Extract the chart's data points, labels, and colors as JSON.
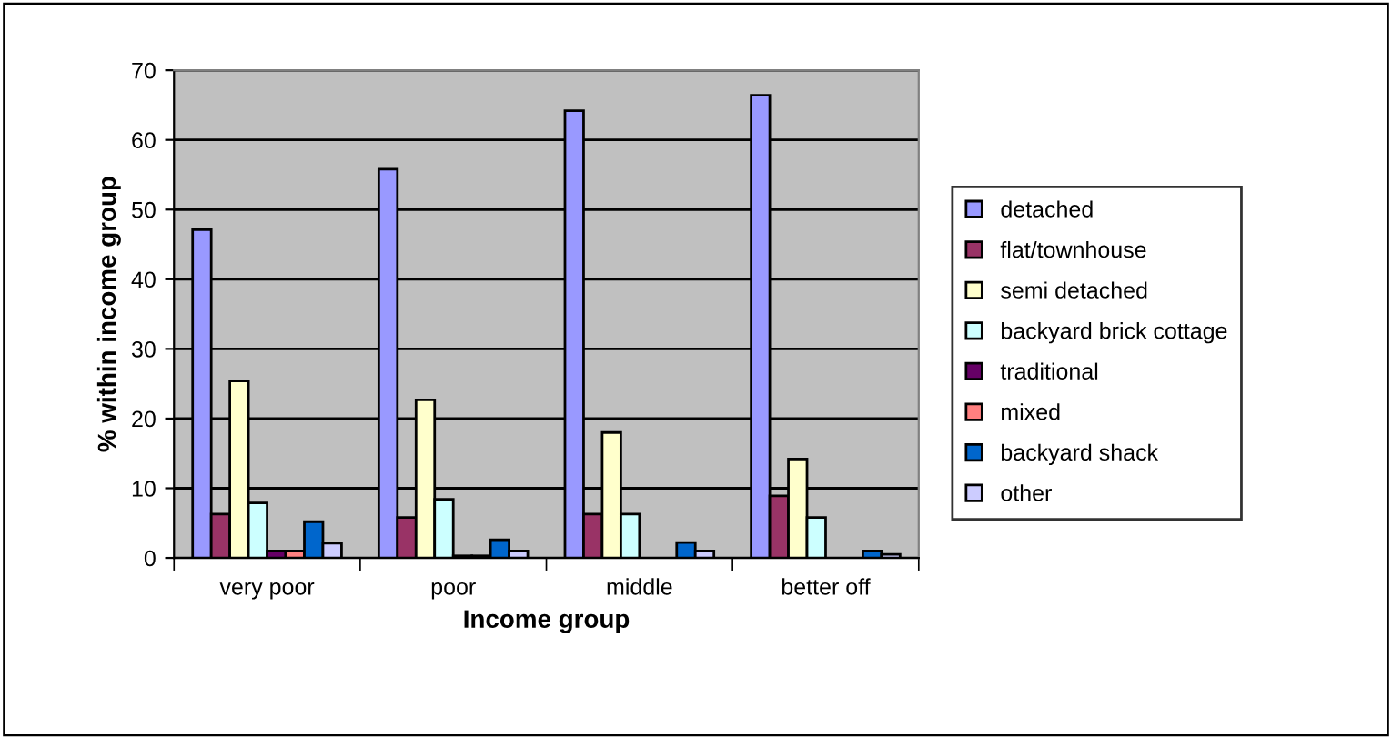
{
  "chart_data": {
    "type": "bar",
    "xlabel": "Income group",
    "ylabel": "% within income group",
    "categories": [
      "very poor",
      "poor",
      "middle",
      "better off"
    ],
    "ylim": [
      0,
      70
    ],
    "yticks": [
      0,
      10,
      20,
      30,
      40,
      50,
      60,
      70
    ],
    "grid": "y",
    "legend": "right",
    "series": [
      {
        "name": "detached",
        "color": "#9999ff",
        "values": [
          47.1,
          55.8,
          64.2,
          66.4
        ]
      },
      {
        "name": "flat/townhouse",
        "color": "#993366",
        "values": [
          6.3,
          5.8,
          6.3,
          8.9
        ]
      },
      {
        "name": "semi detached",
        "color": "#ffffcc",
        "values": [
          25.4,
          22.7,
          18.0,
          14.2
        ]
      },
      {
        "name": "backyard brick cottage",
        "color": "#ccffff",
        "values": [
          7.9,
          8.4,
          6.3,
          5.8
        ]
      },
      {
        "name": "traditional",
        "color": "#660066",
        "values": [
          1.0,
          0.3,
          0,
          0
        ]
      },
      {
        "name": "mixed",
        "color": "#ff8080",
        "values": [
          1.0,
          0.3,
          0,
          0
        ]
      },
      {
        "name": "backyard shack",
        "color": "#0066cc",
        "values": [
          5.2,
          2.6,
          2.2,
          1.0
        ]
      },
      {
        "name": "other",
        "color": "#ccccff",
        "values": [
          2.1,
          1.0,
          1.0,
          0.5
        ]
      }
    ]
  }
}
